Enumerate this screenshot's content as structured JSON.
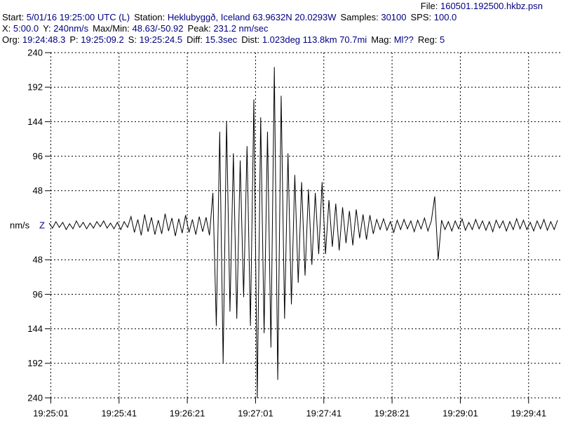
{
  "header": {
    "file": {
      "label": "File:",
      "value": "160501.192500.hkbz.psn"
    },
    "lines": [
      [
        {
          "label": "Start:",
          "value": "5/01/16 19:25:00 UTC (L)"
        },
        {
          "label": "Station:",
          "value": "Heklubyggð, Iceland 63.9632N 20.0293W"
        },
        {
          "label": "Samples:",
          "value": "30100"
        },
        {
          "label": "SPS:",
          "value": "100.0"
        }
      ],
      [
        {
          "label": "X:",
          "value": "5:00.0"
        },
        {
          "label": "Y:",
          "value": "240nm/s"
        },
        {
          "label": "Max/Min:",
          "value": "48.63/-50.92"
        },
        {
          "label": "Peak:",
          "value": "231.2 nm/sec"
        }
      ],
      [
        {
          "label": "Org:",
          "value": "19:24:48.3"
        },
        {
          "label": "P:",
          "value": "19:25:09.2"
        },
        {
          "label": "S:",
          "value": "19:25:24.5"
        },
        {
          "label": "Diff:",
          "value": "15.3sec"
        },
        {
          "label": "Dist:",
          "value": "1.023deg 113.8km 70.7mi"
        },
        {
          "label": "Mag:",
          "value": "Ml??"
        },
        {
          "label": "Reg:",
          "value": "5"
        }
      ]
    ]
  },
  "chart_data": {
    "type": "line",
    "y_label": "nm/s",
    "channel": "Z",
    "color": "#000000",
    "grid": true,
    "xlim": [
      0,
      300
    ],
    "ylim": [
      -240,
      240
    ],
    "xticks": [
      {
        "value": 1,
        "label": "19:25:01"
      },
      {
        "value": 41,
        "label": "19:25:41"
      },
      {
        "value": 81,
        "label": "19:26:21"
      },
      {
        "value": 121,
        "label": "19:27:01"
      },
      {
        "value": 161,
        "label": "19:27:41"
      },
      {
        "value": 201,
        "label": "19:28:21"
      },
      {
        "value": 241,
        "label": "19:29:01"
      },
      {
        "value": 281,
        "label": "19:29:41"
      }
    ],
    "yticks": [
      240,
      192,
      144,
      96,
      48,
      {
        "value": -48,
        "label": "48"
      },
      {
        "value": -96,
        "label": "96"
      },
      {
        "value": -144,
        "label": "144"
      },
      {
        "value": -192,
        "label": "192"
      },
      {
        "value": -240,
        "label": "240"
      }
    ],
    "x": [
      0,
      2,
      4,
      6,
      8,
      10,
      12,
      14,
      16,
      18,
      20,
      22,
      24,
      26,
      28,
      30,
      32,
      34,
      36,
      38,
      40,
      42,
      44,
      46,
      48,
      50,
      52,
      54,
      56,
      58,
      60,
      62,
      64,
      66,
      68,
      70,
      72,
      74,
      76,
      78,
      80,
      82,
      84,
      86,
      88,
      90,
      92,
      94,
      96,
      98,
      100,
      102,
      104,
      106,
      108,
      110,
      112,
      114,
      116,
      118,
      120,
      122,
      124,
      126,
      128,
      130,
      132,
      134,
      136,
      138,
      140,
      142,
      144,
      146,
      148,
      150,
      152,
      154,
      156,
      158,
      160,
      162,
      164,
      166,
      168,
      170,
      172,
      174,
      176,
      178,
      180,
      182,
      184,
      186,
      188,
      190,
      192,
      194,
      196,
      198,
      200,
      202,
      204,
      206,
      208,
      210,
      212,
      214,
      216,
      218,
      220,
      222,
      224,
      226,
      228,
      230,
      232,
      234,
      236,
      238,
      240,
      242,
      244,
      246,
      248,
      250,
      252,
      254,
      256,
      258,
      260,
      262,
      264,
      266,
      268,
      270,
      272,
      274,
      276,
      278,
      280,
      282,
      284,
      286,
      288,
      290,
      292,
      294,
      296,
      298
    ],
    "values": [
      3,
      -4,
      5,
      -3,
      4,
      -6,
      2,
      -5,
      6,
      -3,
      4,
      -5,
      3,
      -4,
      5,
      -2,
      6,
      -4,
      3,
      -5,
      4,
      -6,
      5,
      -3,
      12,
      -10,
      8,
      -14,
      15,
      -9,
      11,
      -13,
      7,
      -12,
      16,
      -8,
      10,
      -15,
      9,
      -11,
      14,
      -10,
      8,
      -13,
      12,
      -9,
      11,
      -14,
      45,
      -140,
      130,
      -192,
      145,
      -120,
      100,
      -130,
      90,
      -100,
      110,
      -140,
      175,
      -240,
      150,
      -150,
      130,
      -170,
      220,
      -215,
      180,
      -130,
      100,
      -110,
      70,
      -80,
      60,
      -70,
      50,
      -55,
      45,
      -40,
      60,
      -40,
      35,
      -30,
      30,
      -35,
      25,
      -25,
      20,
      -28,
      22,
      -18,
      15,
      -20,
      14,
      -12,
      8,
      -6,
      9,
      -7,
      5,
      -10,
      7,
      -6,
      8,
      -5,
      6,
      -9,
      7,
      -5,
      10,
      -8,
      6,
      40,
      -48,
      7,
      -6,
      5,
      -8,
      6,
      -5,
      9,
      -7,
      4,
      -6,
      8,
      -5,
      6,
      -7,
      5,
      -9,
      7,
      -4,
      6,
      -8,
      5,
      -6,
      9,
      -5,
      7,
      -6,
      4,
      -8,
      6,
      -5,
      8,
      -7,
      5,
      -6,
      7
    ]
  }
}
